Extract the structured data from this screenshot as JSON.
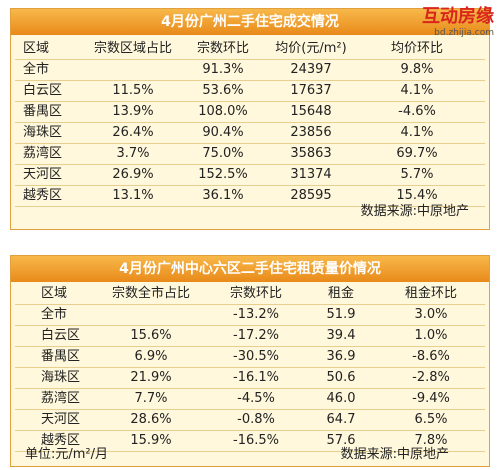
{
  "logo": {
    "name": "互动房缘",
    "url": "bd.zhijia.com"
  },
  "tables": [
    {
      "title": "4月份广州二手住宅成交情况",
      "header": [
        "区域",
        "宗数区域占比",
        "宗数环比",
        "均价(元/m²)",
        "均价环比"
      ],
      "rows": [
        [
          "全市",
          "",
          "91.3%",
          "24397",
          "9.8%"
        ],
        [
          "白云区",
          "11.5%",
          "53.6%",
          "17637",
          "4.1%"
        ],
        [
          "番禺区",
          "13.9%",
          "108.0%",
          "15648",
          "-4.6%"
        ],
        [
          "海珠区",
          "26.4%",
          "90.4%",
          "23856",
          "4.1%"
        ],
        [
          "荔湾区",
          "3.7%",
          "75.0%",
          "35863",
          "69.7%"
        ],
        [
          "天河区",
          "26.9%",
          "152.5%",
          "31374",
          "5.7%"
        ],
        [
          "越秀区",
          "13.1%",
          "36.1%",
          "28595",
          "15.4%"
        ]
      ],
      "notes": [
        "数据来源:中原地产"
      ]
    },
    {
      "title": "4月份广州中心六区二手住宅租赁量价情况",
      "header": [
        "区域",
        "宗数全市占比",
        "宗数环比",
        "租金",
        "租金环比"
      ],
      "rows": [
        [
          "全市",
          "",
          "-13.2%",
          "51.9",
          "3.0%"
        ],
        [
          "白云区",
          "15.6%",
          "-17.2%",
          "39.4",
          "1.0%"
        ],
        [
          "番禺区",
          "6.9%",
          "-30.5%",
          "36.9",
          "-8.6%"
        ],
        [
          "海珠区",
          "21.9%",
          "-16.1%",
          "50.6",
          "-2.8%"
        ],
        [
          "荔湾区",
          "7.7%",
          "-4.5%",
          "46.0",
          "-9.4%"
        ],
        [
          "天河区",
          "28.6%",
          "-0.8%",
          "64.7",
          "6.5%"
        ],
        [
          "越秀区",
          "15.9%",
          "-16.5%",
          "57.6",
          "7.8%"
        ]
      ],
      "notes": [
        "单位:元/m²/月",
        "数据来源:中原地产"
      ]
    }
  ]
}
